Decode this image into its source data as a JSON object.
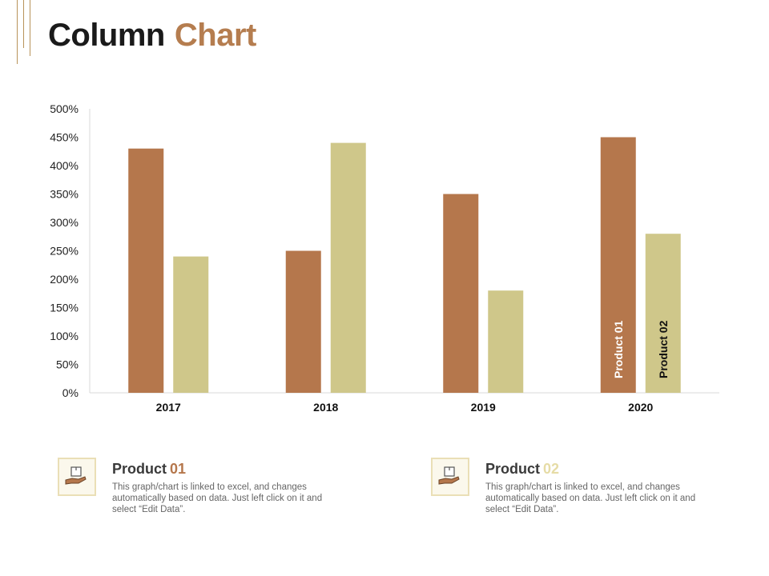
{
  "header": {
    "title_part1": "Column",
    "title_part2": "Chart",
    "accent_color": "#b57d4f"
  },
  "colors": {
    "product01": "#b5774c",
    "product02": "#cfc78a",
    "product02_accent_text": "#e6dca6"
  },
  "chart_data": {
    "type": "bar",
    "categories": [
      "2017",
      "2018",
      "2019",
      "2020"
    ],
    "series": [
      {
        "name": "Product 01",
        "values": [
          430,
          250,
          350,
          450
        ]
      },
      {
        "name": "Product 02",
        "values": [
          240,
          440,
          180,
          280
        ]
      }
    ],
    "yticks": [
      "0%",
      "50%",
      "100%",
      "150%",
      "200%",
      "250%",
      "300%",
      "350%",
      "400%",
      "450%",
      "500%"
    ],
    "ylim": [
      0,
      500
    ],
    "unit": "%",
    "grid": false,
    "series_labels_inside_last_category": true
  },
  "legend": [
    {
      "title": "Product",
      "number": "01",
      "icon": "hand-holding-box-icon",
      "description": "This graph/chart is linked to excel, and changes automatically based on data. Just left click on it and select “Edit Data”."
    },
    {
      "title": "Product",
      "number": "02",
      "icon": "hand-holding-box-icon",
      "description": "This graph/chart is linked to excel, and changes automatically based on data. Just left click on it and select “Edit Data”."
    }
  ]
}
